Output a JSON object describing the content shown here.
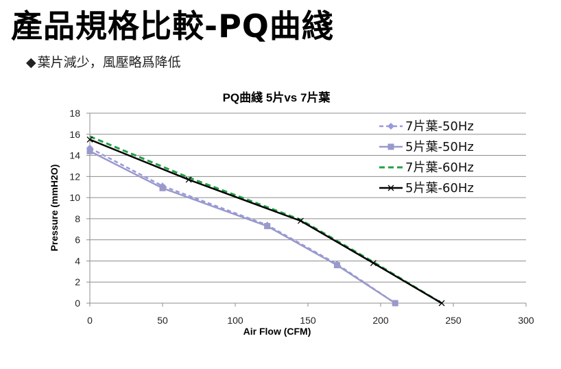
{
  "slide": {
    "title": "產品規格比較-PQ曲綫",
    "bullet_symbol": "◆",
    "bullet_text": "葉片減少，風壓略爲降低"
  },
  "chart_data": {
    "type": "line",
    "title": "PQ曲綫 5片vs 7片葉",
    "xlabel": "Air Flow (CFM)",
    "ylabel": "Pressure (mmH2O)",
    "xlim": [
      0,
      300
    ],
    "ylim": [
      0,
      18
    ],
    "xticks": [
      0,
      50,
      100,
      150,
      200,
      250,
      300
    ],
    "yticks": [
      0,
      2,
      4,
      6,
      8,
      10,
      12,
      14,
      16,
      18
    ],
    "grid": "horizontal",
    "legend_position": "top-right",
    "series": [
      {
        "name": "7片葉-50Hz",
        "color": "#9999dd",
        "dash": "dashed",
        "marker": "diamond",
        "points": [
          [
            0,
            14.7
          ],
          [
            50,
            11.1
          ],
          [
            122,
            7.4
          ],
          [
            170,
            3.7
          ],
          [
            210,
            0
          ]
        ]
      },
      {
        "name": "5片葉-50Hz",
        "color": "#9999cc",
        "dash": "solid",
        "marker": "square",
        "points": [
          [
            0,
            14.4
          ],
          [
            50,
            10.9
          ],
          [
            122,
            7.3
          ],
          [
            170,
            3.6
          ],
          [
            210,
            0
          ]
        ]
      },
      {
        "name": "7片葉-60Hz",
        "color": "#22a045",
        "dash": "dashed",
        "marker": "none",
        "points": [
          [
            0,
            15.8
          ],
          [
            68,
            11.9
          ],
          [
            145,
            7.9
          ],
          [
            195,
            3.9
          ],
          [
            242,
            0
          ]
        ]
      },
      {
        "name": "5片葉-60Hz",
        "color": "#000000",
        "dash": "solid",
        "marker": "x",
        "points": [
          [
            0,
            15.5
          ],
          [
            68,
            11.7
          ],
          [
            145,
            7.8
          ],
          [
            195,
            3.8
          ],
          [
            242,
            0
          ]
        ]
      }
    ]
  }
}
